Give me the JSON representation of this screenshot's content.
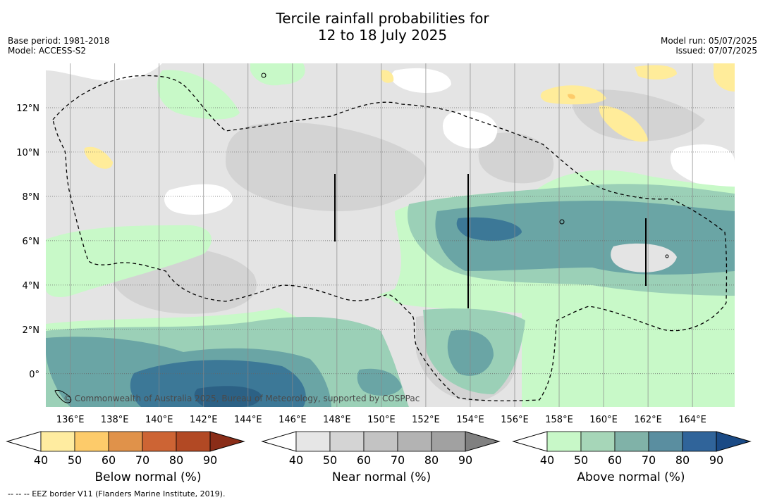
{
  "title": {
    "line1": "Tercile rainfall probabilities for",
    "line2": "12 to 18 July 2025"
  },
  "meta": {
    "base_period": "Base period: 1981-2018",
    "model": "Model: ACCESS-S2",
    "model_run": "Model run: 05/07/2025",
    "issued": "Issued: 07/07/2025"
  },
  "map": {
    "lon_labels": [
      "136°E",
      "138°E",
      "140°E",
      "142°E",
      "144°E",
      "146°E",
      "148°E",
      "150°E",
      "152°E",
      "154°E",
      "156°E",
      "158°E",
      "160°E",
      "162°E",
      "164°E"
    ],
    "lon_values": [
      136,
      138,
      140,
      142,
      144,
      146,
      148,
      150,
      152,
      154,
      156,
      158,
      160,
      162,
      164
    ],
    "lat_labels": [
      "12°N",
      "10°N",
      "8°N",
      "6°N",
      "4°N",
      "2°N",
      "0°"
    ],
    "lat_values": [
      12,
      10,
      8,
      6,
      4,
      2,
      0
    ],
    "lon_range": [
      134.9,
      165.9
    ],
    "lat_range": [
      -1.5,
      14
    ],
    "copyright": "© Commonwealth of Australia 2025, Bureau of Meteorology, supported by COSPPac",
    "colors": {
      "land_bg": "#ffffff",
      "near_40": "#e6e6e6",
      "near_50": "#d3d3d3",
      "above_40": "#c8f9c8",
      "above_50": "#9bd0b7",
      "above_60": "#6aa5a5",
      "above_70": "#3c7897",
      "above_80": "#2a5a8a",
      "above_90": "#1a4682",
      "below_40": "#ffec9a"
    }
  },
  "colorbars": [
    {
      "label": "Below normal (%)",
      "ticks": [
        "40",
        "50",
        "60",
        "70",
        "80",
        "90"
      ],
      "colors": [
        "#ffffff",
        "#ffeca0",
        "#fdcb6a",
        "#e0924a",
        "#cd6434",
        "#b24924",
        "#8a2d18"
      ]
    },
    {
      "label": "Near normal (%)",
      "ticks": [
        "40",
        "50",
        "60",
        "70",
        "80",
        "90"
      ],
      "colors": [
        "#ffffff",
        "#e6e6e6",
        "#d4d4d4",
        "#c3c3c3",
        "#b3b3b3",
        "#a1a1a1",
        "#808080"
      ]
    },
    {
      "label": "Above normal (%)",
      "ticks": [
        "40",
        "50",
        "60",
        "70",
        "80",
        "90"
      ],
      "colors": [
        "#ffffff",
        "#c8f8c8",
        "#a6d6b8",
        "#80b2a8",
        "#5a8ea0",
        "#30649a",
        "#1a4a85"
      ]
    }
  ],
  "footer": "--  --  -- EEZ border V11 (Flanders Marine Institute, 2019)."
}
